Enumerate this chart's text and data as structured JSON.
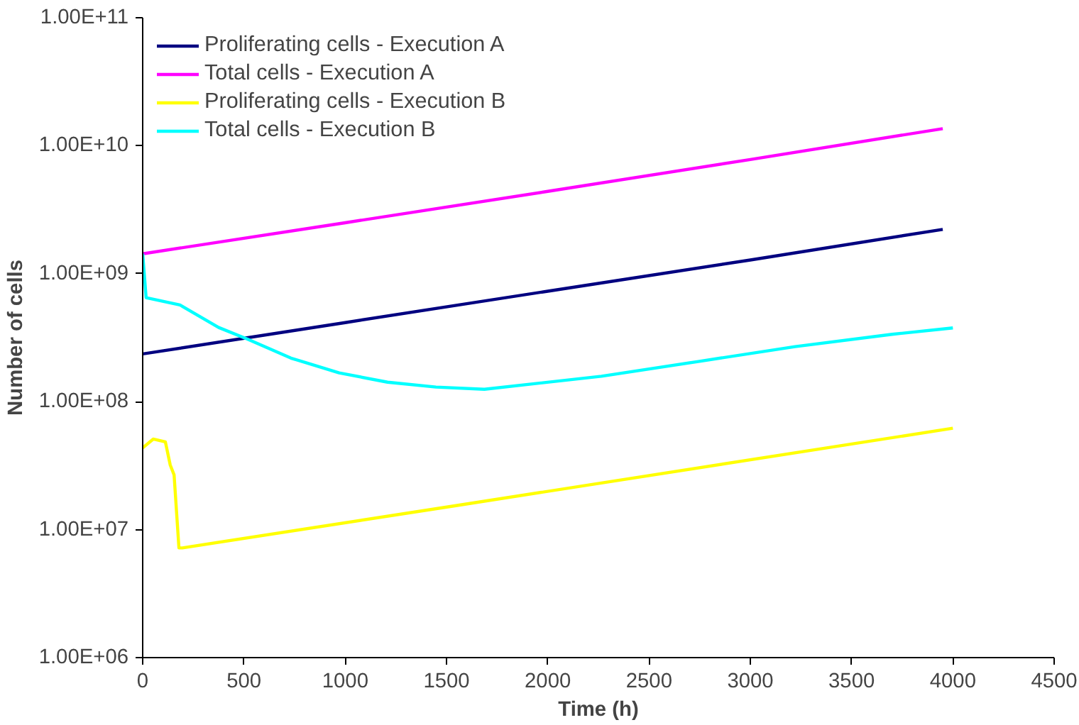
{
  "chart_data": {
    "type": "line",
    "xlabel": "Time (h)",
    "ylabel": "Number of cells",
    "log": "y",
    "xlim": [
      0,
      4500
    ],
    "xticks": [
      0,
      500,
      1000,
      1500,
      2000,
      2500,
      3000,
      3500,
      4000,
      4500
    ],
    "ylim": [
      1000000,
      100000000000
    ],
    "yticks": [
      {
        "value": 1000000,
        "label": "1.00E+06"
      },
      {
        "value": 10000000,
        "label": "1.00E+07"
      },
      {
        "value": 100000000,
        "label": "1.00E+08"
      },
      {
        "value": 1000000000,
        "label": "1.00E+09"
      },
      {
        "value": 10000000000,
        "label": "1.00E+10"
      },
      {
        "value": 100000000000,
        "label": "1.00E+11"
      }
    ],
    "grid": false,
    "legend": "top left",
    "marker": "none",
    "line_style": "solid",
    "series": [
      {
        "name": "Proliferating cells - Execution A",
        "color": "#000080",
        "x": [
          0,
          1000,
          2000,
          3000,
          3950
        ],
        "values": [
          236000000,
          415000000,
          730000000,
          1280000000,
          2220000000
        ]
      },
      {
        "name": "Total cells - Execution A",
        "color": "#ff00ff",
        "x": [
          0,
          1000,
          2000,
          3000,
          3950
        ],
        "values": [
          1430000000,
          2500000000,
          4400000000,
          7800000000,
          13600000000
        ]
      },
      {
        "name": "Proliferating cells - Execution B",
        "color": "#ffff00",
        "x": [
          0,
          52,
          112,
          136,
          155,
          179,
          196,
          1547,
          4000
        ],
        "values": [
          43500000,
          51000000,
          48500000,
          32000000,
          26800000,
          7200000,
          7200000,
          15400000,
          62000000
        ]
      },
      {
        "name": "Total cells - Execution B",
        "color": "#00ffff",
        "x": [
          0,
          17,
          184,
          375,
          517,
          732,
          970,
          1209,
          1448,
          1687,
          2265,
          2743,
          3221,
          3700,
          4000
        ],
        "values": [
          1430000000,
          650000000,
          570000000,
          380000000,
          308000000,
          219000000,
          168000000,
          142000000,
          130000000,
          125000000,
          158000000,
          206000000,
          269000000,
          336000000,
          377000000
        ]
      }
    ]
  }
}
